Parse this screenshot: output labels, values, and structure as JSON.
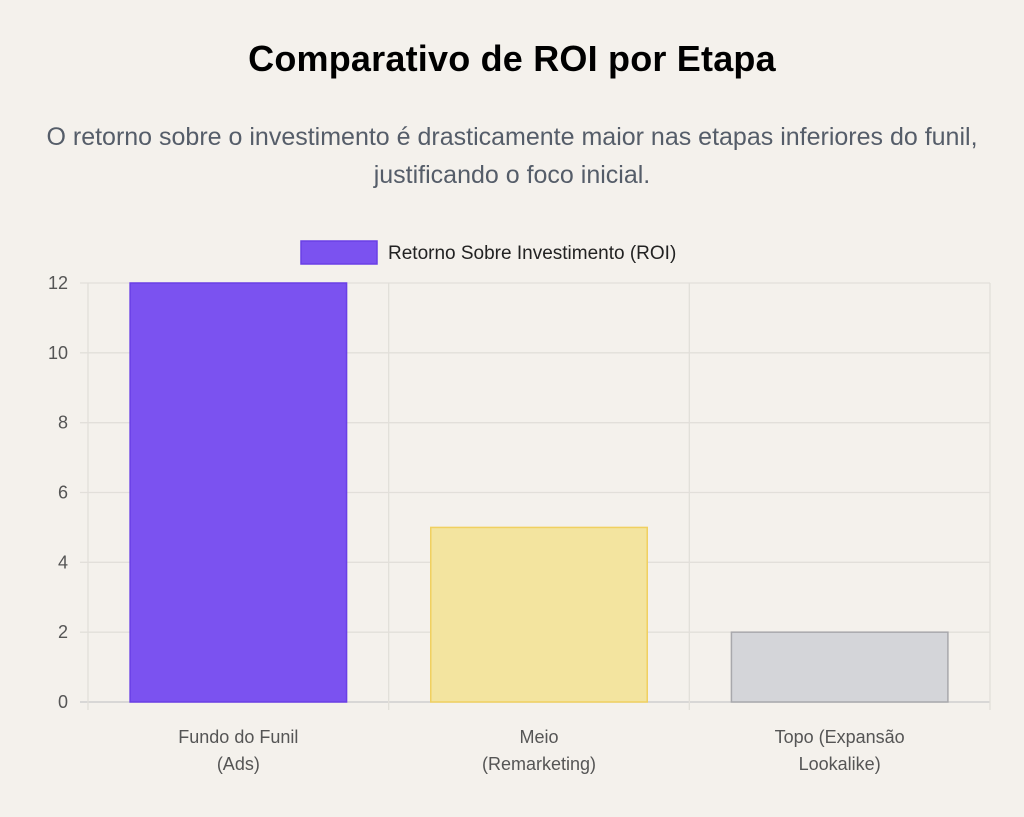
{
  "header": {
    "title": "Comparativo de ROI por Etapa",
    "subtitle": "O retorno sobre o investimento é drasticamente maior nas etapas inferiores do funil, justificando o foco inicial."
  },
  "chart_data": {
    "type": "bar",
    "categories": [
      [
        "Fundo do Funil",
        "(Ads)"
      ],
      [
        "Meio",
        "(Remarketing)"
      ],
      [
        "Topo (Expansão",
        "Lookalike)"
      ]
    ],
    "series": [
      {
        "name": "Retorno Sobre Investimento (ROI)",
        "values": [
          12,
          5,
          2
        ],
        "colors": [
          "#7b52f0",
          "#f3e49f",
          "#d4d5d9"
        ],
        "border_colors": [
          "#6a3fe6",
          "#f0d060",
          "#a8a8ac"
        ]
      }
    ],
    "ylim": [
      0,
      12
    ],
    "yticks": [
      0,
      2,
      4,
      6,
      8,
      10,
      12
    ],
    "grid": true,
    "legend": "top-center",
    "xlabel": "",
    "ylabel": ""
  }
}
